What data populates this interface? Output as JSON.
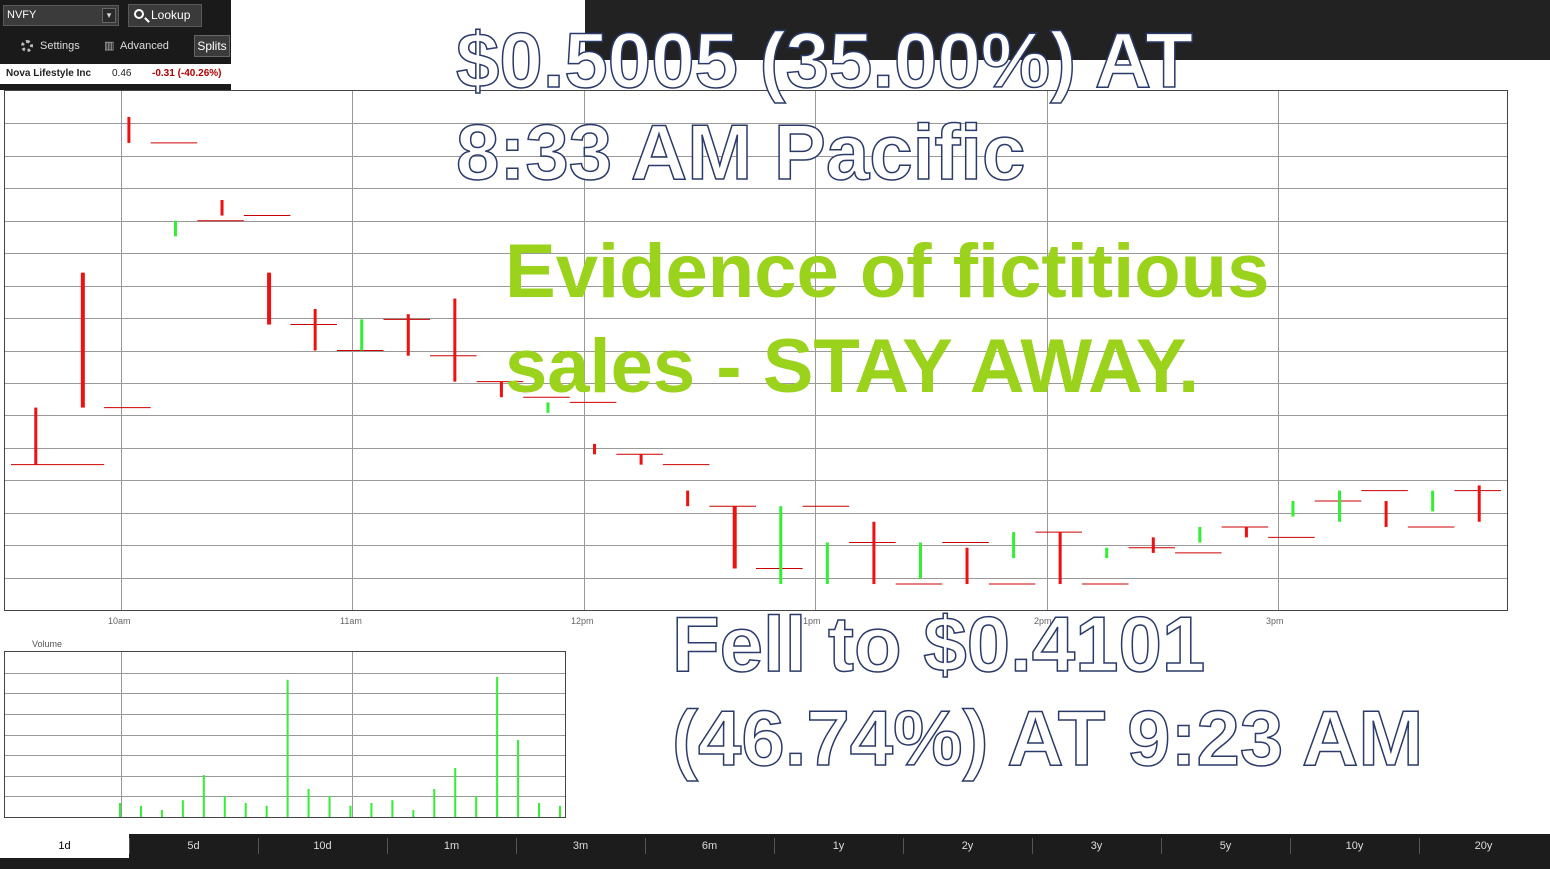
{
  "toolbar": {
    "ticker": "NVFY",
    "lookup_label": "Lookup",
    "settings_label": "Settings",
    "advanced_label": "Advanced",
    "splits_label": "Splits"
  },
  "quote": {
    "name": "Nova Lifestyle Inc",
    "price": "0.46",
    "change": "-0.31 (-40.26%)"
  },
  "annotations": {
    "top_line1": "$0.5005 (35.00%) AT",
    "top_line2": "8:33 AM Pacific",
    "warning_line1": "Evidence of fictitious",
    "warning_line2": "sales - STAY AWAY.",
    "bottom_line1": "Fell to $0.4101",
    "bottom_line2": "(46.74%) AT 9:23 AM"
  },
  "volume_label": "Volume",
  "x_ticks": [
    "10am",
    "11am",
    "12pm",
    "1pm",
    "2pm",
    "3pm"
  ],
  "ranges": [
    "1d",
    "5d",
    "10d",
    "1m",
    "3m",
    "6m",
    "1y",
    "2y",
    "3y",
    "5y",
    "10y",
    "20y"
  ],
  "active_range": "1d",
  "colors": {
    "up": "#33ee33",
    "down": "#ee1111",
    "warning": "#9ad21c"
  },
  "chart_data": {
    "type": "candlestick",
    "y_gridlines": 16,
    "segments": [
      {
        "y1": 0.72,
        "y2": 0.61,
        "up": false,
        "w": 3
      },
      {
        "y1": 0.61,
        "y2": 0.35,
        "up": false,
        "w": 4
      },
      {
        "y1": 0.1,
        "y2": 0.05,
        "up": false,
        "w": 3
      },
      {
        "y1": 0.25,
        "y2": 0.28,
        "up": true,
        "w": 3
      },
      {
        "y1": 0.21,
        "y2": 0.24,
        "up": false,
        "w": 3
      },
      {
        "y1": 0.35,
        "y2": 0.45,
        "up": false,
        "w": 4
      },
      {
        "y1": 0.42,
        "y2": 0.5,
        "up": false,
        "w": 3
      },
      {
        "y1": 0.44,
        "y2": 0.5,
        "up": true,
        "w": 3
      },
      {
        "y1": 0.43,
        "y2": 0.51,
        "up": false,
        "w": 3
      },
      {
        "y1": 0.4,
        "y2": 0.56,
        "up": false,
        "w": 3
      },
      {
        "y1": 0.56,
        "y2": 0.59,
        "up": false,
        "w": 3
      },
      {
        "y1": 0.6,
        "y2": 0.62,
        "up": true,
        "w": 3
      },
      {
        "y1": 0.68,
        "y2": 0.7,
        "up": false,
        "w": 3
      },
      {
        "y1": 0.7,
        "y2": 0.72,
        "up": false,
        "w": 3
      },
      {
        "y1": 0.77,
        "y2": 0.8,
        "up": false,
        "w": 3
      },
      {
        "y1": 0.8,
        "y2": 0.92,
        "up": false,
        "w": 4
      },
      {
        "y1": 0.8,
        "y2": 0.95,
        "up": true,
        "w": 3
      },
      {
        "y1": 0.87,
        "y2": 0.95,
        "up": true,
        "w": 3
      },
      {
        "y1": 0.83,
        "y2": 0.95,
        "up": false,
        "w": 3
      },
      {
        "y1": 0.87,
        "y2": 0.94,
        "up": true,
        "w": 3
      },
      {
        "y1": 0.88,
        "y2": 0.95,
        "up": false,
        "w": 3
      },
      {
        "y1": 0.85,
        "y2": 0.9,
        "up": true,
        "w": 3
      },
      {
        "y1": 0.85,
        "y2": 0.95,
        "up": false,
        "w": 3
      },
      {
        "y1": 0.88,
        "y2": 0.9,
        "up": true,
        "w": 3
      },
      {
        "y1": 0.86,
        "y2": 0.89,
        "up": false,
        "w": 3
      },
      {
        "y1": 0.84,
        "y2": 0.87,
        "up": true,
        "w": 3
      },
      {
        "y1": 0.84,
        "y2": 0.86,
        "up": false,
        "w": 3
      },
      {
        "y1": 0.79,
        "y2": 0.82,
        "up": true,
        "w": 3
      },
      {
        "y1": 0.77,
        "y2": 0.83,
        "up": true,
        "w": 3
      },
      {
        "y1": 0.79,
        "y2": 0.84,
        "up": false,
        "w": 3
      },
      {
        "y1": 0.77,
        "y2": 0.81,
        "up": true,
        "w": 3
      },
      {
        "y1": 0.76,
        "y2": 0.83,
        "up": false,
        "w": 3
      }
    ],
    "volume_bars": [
      0.1,
      0.08,
      0.05,
      0.12,
      0.3,
      0.15,
      0.1,
      0.08,
      0.98,
      0.2,
      0.15,
      0.08,
      0.1,
      0.12,
      0.05,
      0.2,
      0.35,
      0.15,
      1.0,
      0.55,
      0.1,
      0.08
    ]
  }
}
